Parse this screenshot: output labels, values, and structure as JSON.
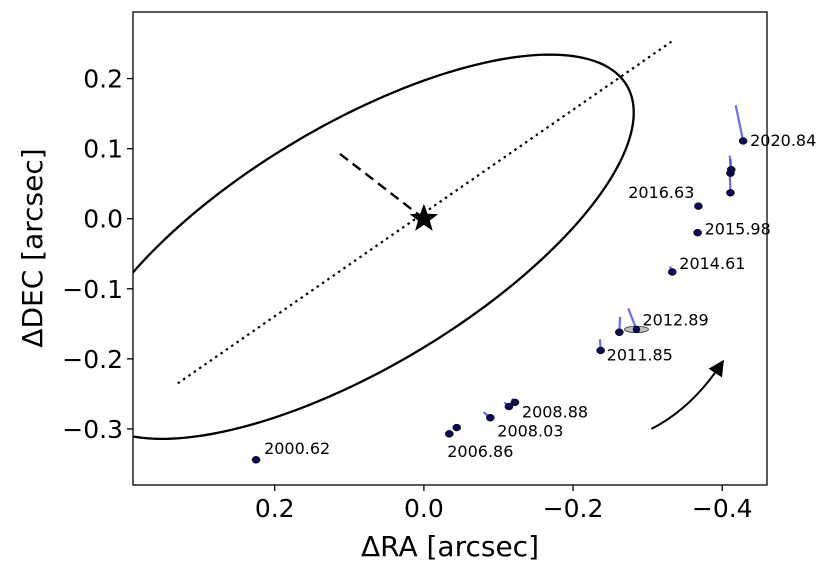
{
  "chart_data": {
    "type": "scatter",
    "xlabel": "ΔRA [arcsec]",
    "ylabel": "ΔDEC [arcsec]",
    "xlim": [
      0.39,
      -0.46
    ],
    "ylim": [
      -0.38,
      0.295
    ],
    "x_inverted": true,
    "xticks": [
      0.2,
      0.0,
      -0.2,
      -0.4
    ],
    "xtick_labels": [
      "0.2",
      "0.0",
      "−0.2",
      "−0.4"
    ],
    "yticks": [
      0.2,
      0.1,
      0.0,
      -0.1,
      -0.2,
      -0.3
    ],
    "ytick_labels": [
      "0.2",
      "0.1",
      "0.0",
      "−0.1",
      "−0.2",
      "−0.3"
    ],
    "grid": false,
    "star": {
      "x": 0.0,
      "y": 0.0
    },
    "orbit_ellipse": {
      "center": [
        0.091,
        -0.04
      ],
      "semi_major": 0.43,
      "semi_minor": 0.17,
      "rotation_deg": 33
    },
    "line_of_nodes": {
      "from": [
        0.33,
        -0.235
      ],
      "to": [
        -0.335,
        0.255
      ]
    },
    "periastron_line": {
      "from": [
        0.0,
        0.0
      ],
      "to": [
        0.118,
        0.097
      ]
    },
    "motion_arrow": {
      "from": [
        -0.305,
        -0.3
      ],
      "via": [
        -0.36,
        -0.27
      ],
      "to": [
        -0.4,
        -0.205
      ]
    },
    "observations": [
      {
        "x": 0.225,
        "y": -0.344,
        "mx": 0.226,
        "my": -0.344,
        "label": "2000.62"
      },
      {
        "x": -0.034,
        "y": -0.307,
        "mx": -0.032,
        "my": -0.302,
        "label": "2006.86"
      },
      {
        "x": -0.044,
        "y": -0.298,
        "mx": -0.045,
        "my": -0.296,
        "label": ""
      },
      {
        "x": -0.089,
        "y": -0.284,
        "mx": -0.08,
        "my": -0.276,
        "label": "2008.03"
      },
      {
        "x": -0.114,
        "y": -0.268,
        "mx": -0.108,
        "my": -0.262,
        "label": ""
      },
      {
        "x": -0.122,
        "y": -0.262,
        "mx": -0.118,
        "my": -0.257,
        "label": "2008.88"
      },
      {
        "x": -0.237,
        "y": -0.188,
        "mx": -0.236,
        "my": -0.172,
        "label": "2011.85"
      },
      {
        "x": -0.262,
        "y": -0.162,
        "mx": -0.263,
        "my": -0.14,
        "label": ""
      },
      {
        "x": -0.285,
        "y": -0.158,
        "mx": -0.274,
        "my": -0.128,
        "label": "2012.89"
      },
      {
        "x": -0.333,
        "y": -0.076,
        "mx": -0.33,
        "my": -0.068,
        "label": "2014.61"
      },
      {
        "x": -0.367,
        "y": -0.02,
        "mx": -0.366,
        "my": -0.02,
        "label": "2015.98"
      },
      {
        "x": -0.368,
        "y": 0.018,
        "mx": -0.368,
        "my": 0.018,
        "label": "2016.63"
      },
      {
        "x": -0.411,
        "y": 0.037,
        "mx": -0.41,
        "my": 0.065,
        "label": ""
      },
      {
        "x": -0.411,
        "y": 0.065,
        "mx": -0.411,
        "my": 0.085,
        "label": ""
      },
      {
        "x": -0.412,
        "y": 0.07,
        "mx": -0.41,
        "my": 0.09,
        "label": ""
      },
      {
        "x": -0.428,
        "y": 0.111,
        "mx": -0.418,
        "my": 0.162,
        "label": "2020.84"
      }
    ]
  },
  "colors": {
    "orbit": "#000000",
    "point": "#0b0b5e",
    "residual": "#3b3bf0",
    "error_ellipse": "#8c8c8c"
  }
}
